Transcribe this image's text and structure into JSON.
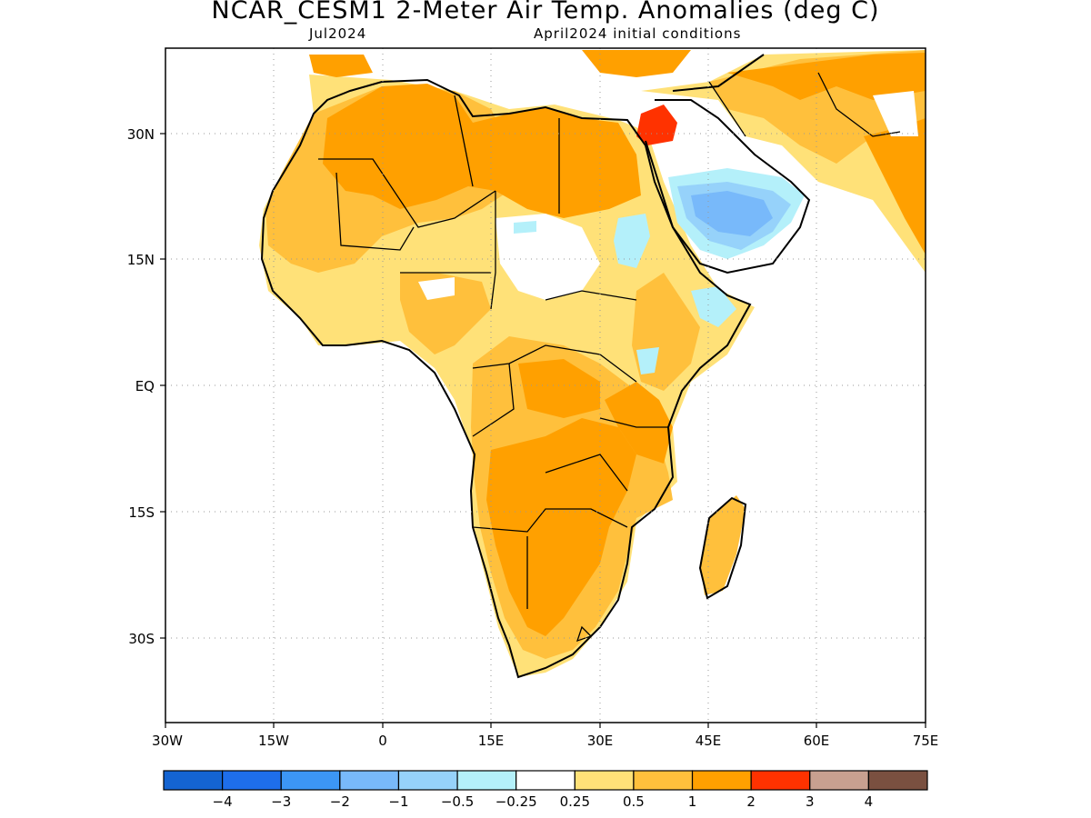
{
  "header": {
    "title": "NCAR_CESM1 2-Meter Air Temp. Anomalies (deg C)",
    "subtitle_left": "Jul2024",
    "subtitle_right": "April2024 initial conditions"
  },
  "map": {
    "lat_labels": [
      "30N",
      "15N",
      "EQ",
      "15S",
      "30S"
    ],
    "lon_labels": [
      "30W",
      "15W",
      "0",
      "15E",
      "30E",
      "45E",
      "60E",
      "75E"
    ],
    "grid": true,
    "domain": {
      "lon": [
        -30,
        75
      ],
      "lat": [
        -40,
        40
      ]
    }
  },
  "colorbar": {
    "colors": [
      "#1464d2",
      "#1e6eeb",
      "#3c96f5",
      "#78b9fa",
      "#96d2fa",
      "#b4f0fa",
      "#ffffff",
      "#ffe178",
      "#ffc03c",
      "#ffa000",
      "#ff3200",
      "#c8a090",
      "#7a5040"
    ],
    "labels": [
      "-4",
      "-3",
      "-2",
      "-1",
      "-0.5",
      "-0.25",
      "0.25",
      "0.5",
      "1",
      "2",
      "3",
      "4"
    ]
  }
}
